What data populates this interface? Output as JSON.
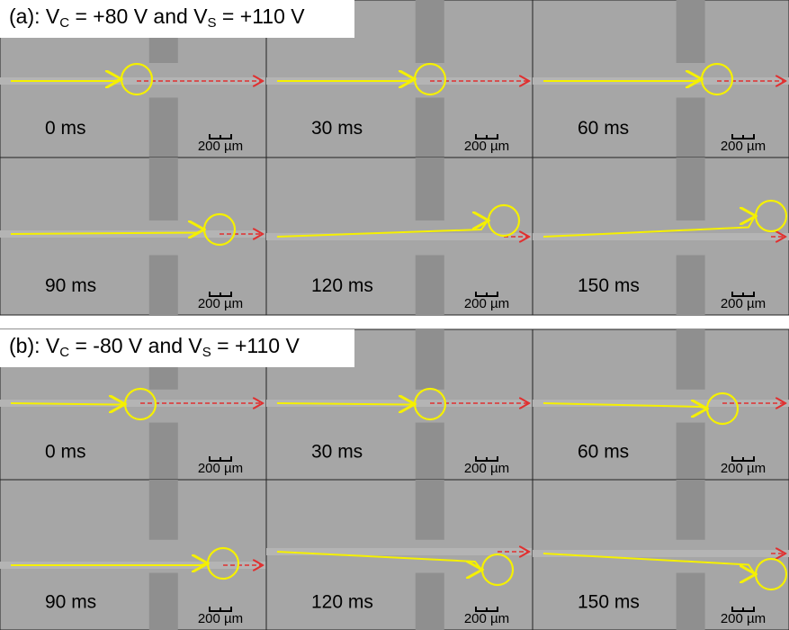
{
  "panels": [
    {
      "label": [
        "(a): V",
        "C",
        " = +80 V and V",
        "S",
        " = +110 V"
      ],
      "frames": [
        {
          "time": "0 ms",
          "scale": "200 µm"
        },
        {
          "time": "30 ms",
          "scale": "200 µm"
        },
        {
          "time": "60 ms",
          "scale": "200 µm"
        },
        {
          "time": "90 ms",
          "scale": "200 µm"
        },
        {
          "time": "120 ms",
          "scale": "200 µm"
        },
        {
          "time": "150 ms",
          "scale": "200 µm"
        }
      ]
    },
    {
      "label": [
        "(b): V",
        "C",
        " = -80 V and V",
        "S",
        " = +110 V"
      ],
      "frames": [
        {
          "time": "0 ms",
          "scale": "200 µm"
        },
        {
          "time": "30 ms",
          "scale": "200 µm"
        },
        {
          "time": "60 ms",
          "scale": "200 µm"
        },
        {
          "time": "90 ms",
          "scale": "200 µm"
        },
        {
          "time": "120 ms",
          "scale": "200 µm"
        },
        {
          "time": "150 ms",
          "scale": "200 µm"
        }
      ]
    }
  ]
}
